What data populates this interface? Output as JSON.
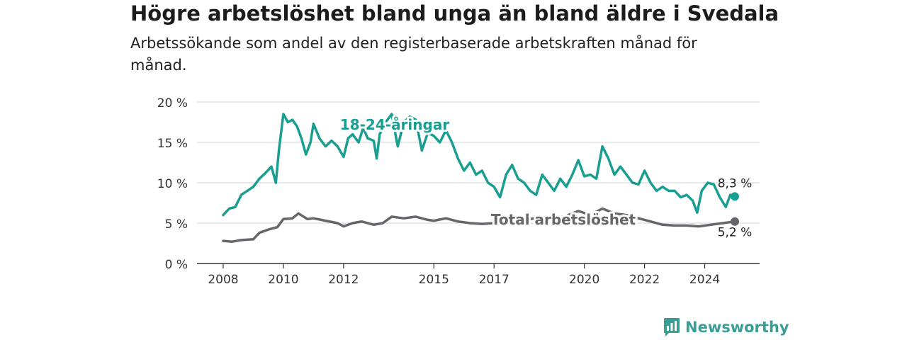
{
  "title": "Högre arbetslöshet bland unga än bland äldre i Svedala",
  "subtitle": "Arbetssökande som andel av den registerbaserade arbetskraften månad för månad.",
  "brand": {
    "name": "Newsworthy"
  },
  "colors": {
    "youth": "#1a9e91",
    "total": "#66656b",
    "grid": "#d3d3d3",
    "axis": "#333333",
    "brand": "#3a9e96"
  },
  "chart_data": {
    "type": "line",
    "title": "Högre arbetslöshet bland unga än bland äldre i Svedala",
    "ylim": [
      0,
      20
    ],
    "xlim": [
      2008,
      2025
    ],
    "y_ticks": [
      0,
      5,
      10,
      15,
      20
    ],
    "y_tick_labels": [
      "0 %",
      "5 %",
      "10 %",
      "15 %",
      "20 %"
    ],
    "x_ticks": [
      2008,
      2010,
      2012,
      2015,
      2017,
      2020,
      2022,
      2024
    ],
    "x_tick_labels": [
      "2008",
      "2010",
      "2012",
      "2015",
      "2017",
      "2020",
      "2022",
      "2024"
    ],
    "grid": "horizontal",
    "series": [
      {
        "name": "18-24-åringar",
        "color": "#1a9e91",
        "end_label": "8,3 %",
        "points": [
          [
            2008.0,
            6.0
          ],
          [
            2008.2,
            6.8
          ],
          [
            2008.4,
            7.0
          ],
          [
            2008.6,
            8.5
          ],
          [
            2008.8,
            9.0
          ],
          [
            2009.0,
            9.5
          ],
          [
            2009.2,
            10.5
          ],
          [
            2009.4,
            11.2
          ],
          [
            2009.6,
            12.0
          ],
          [
            2009.75,
            10.0
          ],
          [
            2009.85,
            14.0
          ],
          [
            2010.0,
            18.5
          ],
          [
            2010.15,
            17.5
          ],
          [
            2010.3,
            17.8
          ],
          [
            2010.45,
            17.0
          ],
          [
            2010.6,
            15.5
          ],
          [
            2010.75,
            13.5
          ],
          [
            2010.9,
            15.0
          ],
          [
            2011.0,
            17.3
          ],
          [
            2011.2,
            15.5
          ],
          [
            2011.4,
            14.5
          ],
          [
            2011.6,
            15.2
          ],
          [
            2011.8,
            14.5
          ],
          [
            2012.0,
            13.2
          ],
          [
            2012.15,
            15.5
          ],
          [
            2012.3,
            16.0
          ],
          [
            2012.5,
            15.0
          ],
          [
            2012.65,
            16.8
          ],
          [
            2012.8,
            15.5
          ],
          [
            2013.0,
            15.2
          ],
          [
            2013.1,
            13.0
          ],
          [
            2013.2,
            16.0
          ],
          [
            2013.4,
            17.5
          ],
          [
            2013.6,
            18.5
          ],
          [
            2013.8,
            14.5
          ],
          [
            2014.0,
            17.5
          ],
          [
            2014.2,
            18.2
          ],
          [
            2014.4,
            17.8
          ],
          [
            2014.6,
            14.0
          ],
          [
            2014.8,
            16.2
          ],
          [
            2015.0,
            15.8
          ],
          [
            2015.2,
            15.0
          ],
          [
            2015.4,
            16.5
          ],
          [
            2015.6,
            15.0
          ],
          [
            2015.8,
            13.0
          ],
          [
            2016.0,
            11.5
          ],
          [
            2016.2,
            12.5
          ],
          [
            2016.4,
            11.0
          ],
          [
            2016.6,
            11.5
          ],
          [
            2016.8,
            10.0
          ],
          [
            2017.0,
            9.5
          ],
          [
            2017.2,
            8.2
          ],
          [
            2017.4,
            11.0
          ],
          [
            2017.6,
            12.2
          ],
          [
            2017.8,
            10.5
          ],
          [
            2018.0,
            10.0
          ],
          [
            2018.2,
            9.0
          ],
          [
            2018.4,
            8.5
          ],
          [
            2018.6,
            11.0
          ],
          [
            2018.8,
            10.0
          ],
          [
            2019.0,
            9.0
          ],
          [
            2019.2,
            10.5
          ],
          [
            2019.4,
            9.5
          ],
          [
            2019.6,
            11.0
          ],
          [
            2019.8,
            12.8
          ],
          [
            2020.0,
            10.8
          ],
          [
            2020.2,
            11.0
          ],
          [
            2020.4,
            10.5
          ],
          [
            2020.6,
            14.5
          ],
          [
            2020.8,
            13.0
          ],
          [
            2021.0,
            11.0
          ],
          [
            2021.2,
            12.0
          ],
          [
            2021.4,
            11.0
          ],
          [
            2021.6,
            10.0
          ],
          [
            2021.8,
            9.8
          ],
          [
            2022.0,
            11.5
          ],
          [
            2022.2,
            10.0
          ],
          [
            2022.4,
            9.0
          ],
          [
            2022.6,
            9.5
          ],
          [
            2022.8,
            9.0
          ],
          [
            2023.0,
            9.0
          ],
          [
            2023.2,
            8.2
          ],
          [
            2023.4,
            8.5
          ],
          [
            2023.6,
            7.8
          ],
          [
            2023.75,
            6.3
          ],
          [
            2023.9,
            9.0
          ],
          [
            2024.1,
            10.0
          ],
          [
            2024.3,
            9.8
          ],
          [
            2024.5,
            8.2
          ],
          [
            2024.7,
            7.0
          ],
          [
            2024.85,
            8.5
          ],
          [
            2025.0,
            8.3
          ]
        ]
      },
      {
        "name": "Total arbetslöshet",
        "color": "#66656b",
        "end_label": "5,2 %",
        "points": [
          [
            2008.0,
            2.8
          ],
          [
            2008.3,
            2.7
          ],
          [
            2008.6,
            2.9
          ],
          [
            2009.0,
            3.0
          ],
          [
            2009.2,
            3.8
          ],
          [
            2009.5,
            4.2
          ],
          [
            2009.8,
            4.5
          ],
          [
            2010.0,
            5.5
          ],
          [
            2010.3,
            5.6
          ],
          [
            2010.5,
            6.2
          ],
          [
            2010.8,
            5.5
          ],
          [
            2011.0,
            5.6
          ],
          [
            2011.4,
            5.3
          ],
          [
            2011.8,
            5.0
          ],
          [
            2012.0,
            4.6
          ],
          [
            2012.3,
            5.0
          ],
          [
            2012.6,
            5.2
          ],
          [
            2013.0,
            4.8
          ],
          [
            2013.3,
            5.0
          ],
          [
            2013.6,
            5.8
          ],
          [
            2014.0,
            5.6
          ],
          [
            2014.4,
            5.8
          ],
          [
            2014.8,
            5.4
          ],
          [
            2015.0,
            5.3
          ],
          [
            2015.4,
            5.6
          ],
          [
            2015.8,
            5.2
          ],
          [
            2016.2,
            5.0
          ],
          [
            2016.6,
            4.9
          ],
          [
            2017.0,
            5.0
          ],
          [
            2017.4,
            5.3
          ],
          [
            2017.8,
            5.8
          ],
          [
            2018.2,
            5.5
          ],
          [
            2018.6,
            5.8
          ],
          [
            2019.0,
            5.5
          ],
          [
            2019.4,
            5.9
          ],
          [
            2019.8,
            6.5
          ],
          [
            2020.2,
            6.0
          ],
          [
            2020.6,
            6.8
          ],
          [
            2021.0,
            6.2
          ],
          [
            2021.4,
            6.0
          ],
          [
            2021.8,
            5.6
          ],
          [
            2022.2,
            5.2
          ],
          [
            2022.6,
            4.8
          ],
          [
            2023.0,
            4.7
          ],
          [
            2023.4,
            4.7
          ],
          [
            2023.8,
            4.6
          ],
          [
            2024.2,
            4.8
          ],
          [
            2024.6,
            5.0
          ],
          [
            2025.0,
            5.2
          ]
        ]
      }
    ]
  }
}
